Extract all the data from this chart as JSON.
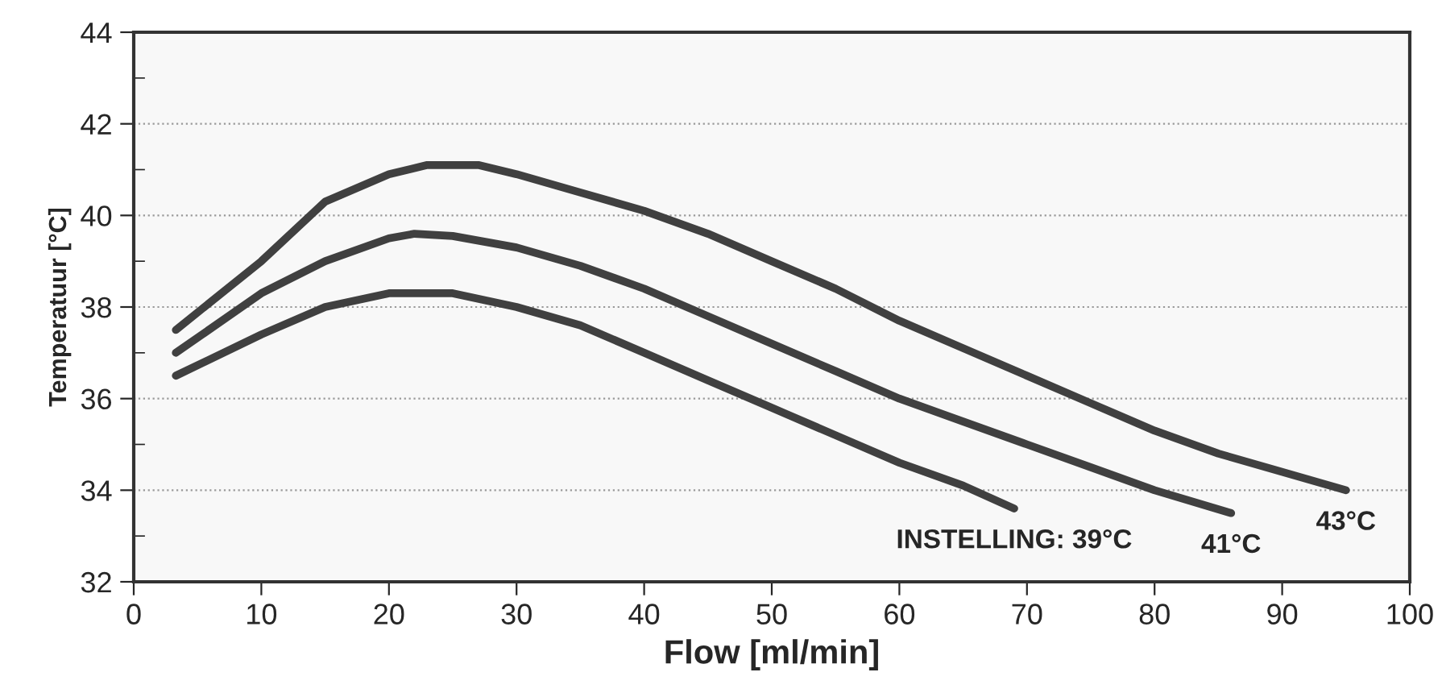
{
  "chart_data": {
    "type": "line",
    "xlabel": "Flow [ml/min]",
    "ylabel": "Temperatuur [°C]",
    "xlim": [
      0,
      100
    ],
    "xticks": [
      0,
      10,
      20,
      30,
      40,
      50,
      60,
      70,
      80,
      90,
      100
    ],
    "ylim": [
      32,
      44
    ],
    "yticks": [
      32,
      34,
      36,
      38,
      40,
      42,
      44
    ],
    "grid": "y",
    "legend": false,
    "marker": "none",
    "line_style": "solid",
    "series": [
      {
        "name": "INSTELLING: 39°C",
        "color": "#404040",
        "x": [
          3.3,
          10,
          15,
          20,
          25,
          30,
          35,
          40,
          45,
          50,
          55,
          60,
          65,
          69
        ],
        "values": [
          36.5,
          37.4,
          38.0,
          38.3,
          38.3,
          38.0,
          37.6,
          37.0,
          36.4,
          35.8,
          35.2,
          34.6,
          34.1,
          33.6
        ]
      },
      {
        "name": "41°C",
        "color": "#404040",
        "x": [
          3.3,
          10,
          15,
          20,
          22,
          25,
          30,
          35,
          40,
          45,
          50,
          55,
          60,
          65,
          70,
          75,
          80,
          86
        ],
        "values": [
          37.0,
          38.3,
          39.0,
          39.5,
          39.6,
          39.55,
          39.3,
          38.9,
          38.4,
          37.8,
          37.2,
          36.6,
          36.0,
          35.5,
          35.0,
          34.5,
          34.0,
          33.5
        ]
      },
      {
        "name": "43°C",
        "color": "#404040",
        "x": [
          3.3,
          10,
          15,
          20,
          23,
          27,
          30,
          35,
          40,
          45,
          50,
          55,
          60,
          65,
          70,
          75,
          80,
          85,
          90,
          95
        ],
        "values": [
          37.5,
          39.0,
          40.3,
          40.9,
          41.1,
          41.1,
          40.9,
          40.5,
          40.1,
          39.6,
          39.0,
          38.4,
          37.7,
          37.1,
          36.5,
          35.9,
          35.3,
          34.8,
          34.4,
          34.0
        ]
      }
    ]
  }
}
